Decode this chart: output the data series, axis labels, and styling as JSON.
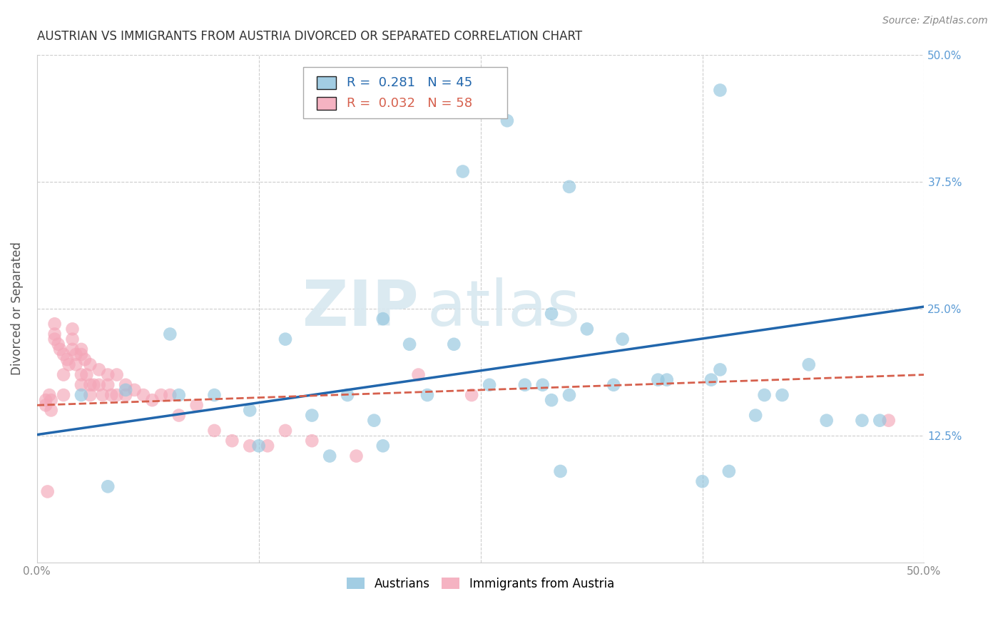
{
  "title": "AUSTRIAN VS IMMIGRANTS FROM AUSTRIA DIVORCED OR SEPARATED CORRELATION CHART",
  "source": "Source: ZipAtlas.com",
  "ylabel": "Divorced or Separated",
  "xlim": [
    0.0,
    0.5
  ],
  "ylim": [
    0.0,
    0.5
  ],
  "legend_label_blue": "Austrians",
  "legend_label_pink": "Immigrants from Austria",
  "R_blue": "0.281",
  "N_blue": "45",
  "R_pink": "0.032",
  "N_pink": "58",
  "color_blue": "#92c5de",
  "color_pink": "#f4a6b8",
  "line_color_blue": "#2166ac",
  "line_color_pink": "#d6604d",
  "watermark_zip": "ZIP",
  "watermark_atlas": "atlas",
  "background_color": "#ffffff",
  "grid_color": "#cccccc",
  "blue_x": [
    0.265,
    0.385,
    0.24,
    0.3,
    0.075,
    0.14,
    0.195,
    0.29,
    0.31,
    0.33,
    0.385,
    0.435,
    0.445,
    0.465,
    0.285,
    0.325,
    0.35,
    0.38,
    0.21,
    0.05,
    0.08,
    0.1,
    0.12,
    0.155,
    0.175,
    0.19,
    0.22,
    0.235,
    0.255,
    0.275,
    0.355,
    0.405,
    0.42,
    0.475,
    0.025,
    0.04,
    0.3,
    0.375,
    0.39,
    0.29,
    0.195,
    0.125,
    0.165,
    0.295,
    0.41
  ],
  "blue_y": [
    0.435,
    0.465,
    0.385,
    0.37,
    0.225,
    0.22,
    0.24,
    0.245,
    0.23,
    0.22,
    0.19,
    0.195,
    0.14,
    0.14,
    0.175,
    0.175,
    0.18,
    0.18,
    0.215,
    0.17,
    0.165,
    0.165,
    0.15,
    0.145,
    0.165,
    0.14,
    0.165,
    0.215,
    0.175,
    0.175,
    0.18,
    0.145,
    0.165,
    0.14,
    0.165,
    0.075,
    0.165,
    0.08,
    0.09,
    0.16,
    0.115,
    0.115,
    0.105,
    0.09,
    0.165
  ],
  "pink_x": [
    0.005,
    0.005,
    0.007,
    0.008,
    0.01,
    0.01,
    0.01,
    0.012,
    0.013,
    0.015,
    0.015,
    0.017,
    0.018,
    0.02,
    0.02,
    0.02,
    0.022,
    0.022,
    0.025,
    0.025,
    0.025,
    0.027,
    0.028,
    0.03,
    0.03,
    0.03,
    0.032,
    0.035,
    0.035,
    0.037,
    0.04,
    0.04,
    0.042,
    0.045,
    0.045,
    0.05,
    0.05,
    0.055,
    0.06,
    0.065,
    0.07,
    0.075,
    0.08,
    0.09,
    0.1,
    0.11,
    0.12,
    0.13,
    0.14,
    0.155,
    0.18,
    0.215,
    0.245,
    0.025,
    0.015,
    0.008,
    0.006,
    0.48
  ],
  "pink_y": [
    0.16,
    0.155,
    0.165,
    0.16,
    0.235,
    0.225,
    0.22,
    0.215,
    0.21,
    0.205,
    0.185,
    0.2,
    0.195,
    0.23,
    0.22,
    0.21,
    0.205,
    0.195,
    0.21,
    0.205,
    0.185,
    0.2,
    0.185,
    0.195,
    0.175,
    0.165,
    0.175,
    0.19,
    0.175,
    0.165,
    0.185,
    0.175,
    0.165,
    0.185,
    0.165,
    0.175,
    0.165,
    0.17,
    0.165,
    0.16,
    0.165,
    0.165,
    0.145,
    0.155,
    0.13,
    0.12,
    0.115,
    0.115,
    0.13,
    0.12,
    0.105,
    0.185,
    0.165,
    0.175,
    0.165,
    0.15,
    0.07,
    0.14
  ],
  "blue_line_x0": 0.0,
  "blue_line_x1": 0.5,
  "blue_line_y0": 0.126,
  "blue_line_y1": 0.252,
  "pink_line_x0": 0.0,
  "pink_line_x1": 0.5,
  "pink_line_y0": 0.155,
  "pink_line_y1": 0.185
}
